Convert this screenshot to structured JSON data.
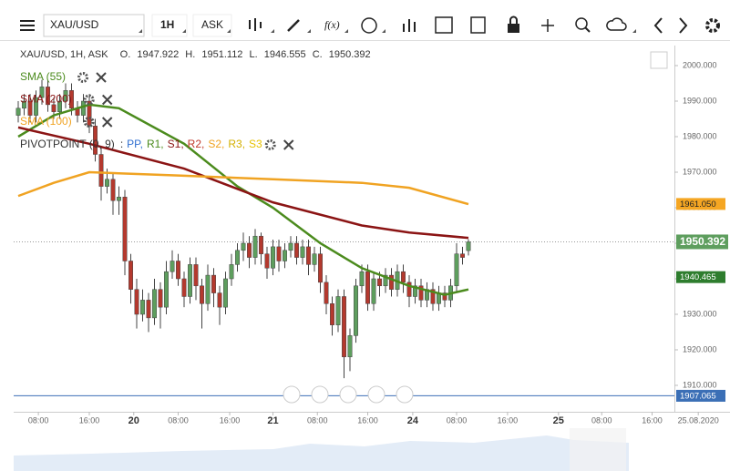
{
  "toolbar": {
    "symbol": "XAU/USD",
    "interval": "1H",
    "price": "ASK",
    "fx": "f(x)"
  },
  "chart_data": {
    "type": "candlestick",
    "title": "XAU/USD, 1H, ASK",
    "ohlc_labels": [
      "O.",
      "H.",
      "L.",
      "C."
    ],
    "up_color": "#5e9e5e",
    "down_color": "#b4392e",
    "open": [
      1986,
      1988,
      1990,
      1986,
      1991,
      1994,
      1989,
      1987,
      1990,
      1993,
      1988,
      1986,
      1990,
      1983,
      1975,
      1966,
      1968,
      1962,
      1963,
      1945,
      1937,
      1930,
      1934,
      1929,
      1937,
      1932,
      1942,
      1945,
      1940,
      1935,
      1944,
      1938,
      1933,
      1941,
      1936,
      1932,
      1940,
      1944,
      1948,
      1950,
      1946,
      1952,
      1947,
      1943,
      1949,
      1945,
      1948,
      1950,
      1946,
      1949,
      1944,
      1947,
      1939,
      1933,
      1927,
      1935,
      1918,
      1924,
      1938,
      1942,
      1933,
      1940,
      1938,
      1941,
      1937,
      1942,
      1939,
      1935,
      1938,
      1934,
      1937,
      1933,
      1936,
      1934,
      1938,
      1947,
      1947.922
    ],
    "high": [
      1990,
      1992,
      1992,
      1993,
      1996,
      1996,
      1991,
      1992,
      1995,
      1995,
      1990,
      1992,
      1992,
      1985,
      1977,
      1971,
      1970,
      1966,
      1965,
      1947,
      1940,
      1937,
      1936,
      1940,
      1939,
      1945,
      1948,
      1947,
      1942,
      1946,
      1946,
      1940,
      1944,
      1943,
      1938,
      1942,
      1947,
      1950,
      1953,
      1952,
      1954,
      1953,
      1949,
      1951,
      1951,
      1950,
      1952,
      1952,
      1951,
      1951,
      1949,
      1949,
      1941,
      1935,
      1937,
      1937,
      1926,
      1940,
      1944,
      1944,
      1942,
      1942,
      1943,
      1943,
      1944,
      1944,
      1941,
      1940,
      1940,
      1939,
      1939,
      1938,
      1938,
      1940,
      1950,
      1949,
      1951.112
    ],
    "low": [
      1984,
      1986,
      1984,
      1984,
      1989,
      1987,
      1985,
      1985,
      1988,
      1986,
      1984,
      1984,
      1981,
      1973,
      1962,
      1964,
      1958,
      1958,
      1941,
      1933,
      1926,
      1928,
      1925,
      1927,
      1926,
      1930,
      1940,
      1938,
      1932,
      1933,
      1934,
      1926,
      1931,
      1932,
      1927,
      1930,
      1938,
      1942,
      1945,
      1943,
      1944,
      1944,
      1940,
      1941,
      1942,
      1943,
      1946,
      1944,
      1944,
      1941,
      1942,
      1936,
      1930,
      1924,
      1925,
      1912,
      1914,
      1922,
      1936,
      1931,
      1931,
      1935,
      1936,
      1935,
      1935,
      1936,
      1932,
      1933,
      1932,
      1932,
      1931,
      1931,
      1932,
      1932,
      1936,
      1944,
      1946.555
    ],
    "close": [
      1988,
      1990,
      1986,
      1991,
      1994,
      1989,
      1987,
      1990,
      1993,
      1988,
      1986,
      1990,
      1983,
      1975,
      1966,
      1968,
      1962,
      1963,
      1945,
      1937,
      1930,
      1934,
      1929,
      1937,
      1932,
      1942,
      1945,
      1940,
      1935,
      1944,
      1938,
      1933,
      1941,
      1936,
      1932,
      1940,
      1944,
      1948,
      1950,
      1946,
      1952,
      1947,
      1943,
      1949,
      1945,
      1948,
      1950,
      1946,
      1949,
      1944,
      1947,
      1939,
      1933,
      1927,
      1935,
      1918,
      1924,
      1938,
      1942,
      1933,
      1940,
      1938,
      1941,
      1937,
      1942,
      1939,
      1935,
      1938,
      1934,
      1937,
      1933,
      1936,
      1934,
      1938,
      1947,
      1946,
      1950.392
    ],
    "series": [
      {
        "name": "SMA (55)",
        "color": "#4b8b1d",
        "x": [
          0,
          6,
          12,
          17,
          28,
          37,
          43,
          51,
          58,
          66,
          72,
          76
        ],
        "values": [
          1980,
          1986,
          1989,
          1988,
          1978,
          1966,
          1960,
          1950,
          1943,
          1938,
          1935.5,
          1937
        ]
      },
      {
        "name": "SMA (200)",
        "color": "#8b1414",
        "x": [
          0,
          12,
          28,
          43,
          58,
          66,
          76
        ],
        "values": [
          1982.6,
          1978,
          1971,
          1961.5,
          1955,
          1953,
          1951.5
        ]
      },
      {
        "name": "SMA (100)",
        "color": "#f0a322",
        "x": [
          0,
          6,
          12,
          28,
          43,
          58,
          66,
          76
        ],
        "values": [
          1963.3,
          1967,
          1970,
          1969,
          1968,
          1967,
          1965.6,
          1961
        ]
      }
    ],
    "pivot": {
      "name": "PIVOTPOINT (0, 9)",
      "separator": ":",
      "items": [
        {
          "text": "PP,",
          "color": "#2f6fd0"
        },
        {
          "text": "R1,",
          "color": "#4b8b1d"
        },
        {
          "text": "S1,",
          "color": "#8b1414"
        },
        {
          "text": "R2,",
          "color": "#c0392b"
        },
        {
          "text": "S2,",
          "color": "#f0a322"
        },
        {
          "text": "R3,",
          "color": "#d4b000"
        },
        {
          "text": "S3",
          "color": "#e6c200"
        }
      ]
    },
    "ylim": [
      1902.56,
      2005.64
    ],
    "yticks": [
      {
        "value": 1910,
        "label": "1910.000"
      },
      {
        "value": 1920,
        "label": "1920.000"
      },
      {
        "value": 1930,
        "label": "1930.000"
      },
      {
        "value": 1940,
        "label": "1940.000"
      },
      {
        "value": 1950,
        "label": "1950.000"
      },
      {
        "value": 1960,
        "label": "1960.000"
      },
      {
        "value": 1970,
        "label": "1970.000"
      },
      {
        "value": 1980,
        "label": "1980.000"
      },
      {
        "value": 1990,
        "label": "1990.000"
      },
      {
        "value": 2000,
        "label": "2000.000"
      }
    ],
    "xlim": [
      -0.77,
      110.77
    ],
    "xticks": [
      {
        "value": 3.4,
        "label": "08:00"
      },
      {
        "value": 12,
        "label": "16:00"
      },
      {
        "value": 19.5,
        "label": "20"
      },
      {
        "value": 27,
        "label": "08:00"
      },
      {
        "value": 35.7,
        "label": "16:00"
      },
      {
        "value": 43,
        "label": "21"
      },
      {
        "value": 50.5,
        "label": "08:00"
      },
      {
        "value": 59,
        "label": "16:00"
      },
      {
        "value": 66.6,
        "label": "24"
      },
      {
        "value": 74,
        "label": "08:00"
      },
      {
        "value": 82.6,
        "label": "16:00"
      },
      {
        "value": 91.2,
        "label": "25"
      },
      {
        "value": 98.5,
        "label": "08:00"
      },
      {
        "value": 107,
        "label": "16:00"
      },
      {
        "value": 114.8,
        "label": "25.08.2020"
      }
    ],
    "price_labels": [
      {
        "value": 1961.05,
        "label": "1961.050",
        "color": "#f5a623",
        "text_color": "#222"
      },
      {
        "value": 1950.392,
        "label": "1950.392",
        "color": "#5e9e5e",
        "text_color": "#fff",
        "line": "dotted"
      },
      {
        "value": 1940.465,
        "label": "1940.465",
        "color": "#2e7d2e",
        "text_color": "#fff"
      },
      {
        "value": 1907.065,
        "label": "1907.065",
        "color": "#3b6fb6",
        "text_color": "#fff",
        "line": "solid"
      }
    ]
  }
}
